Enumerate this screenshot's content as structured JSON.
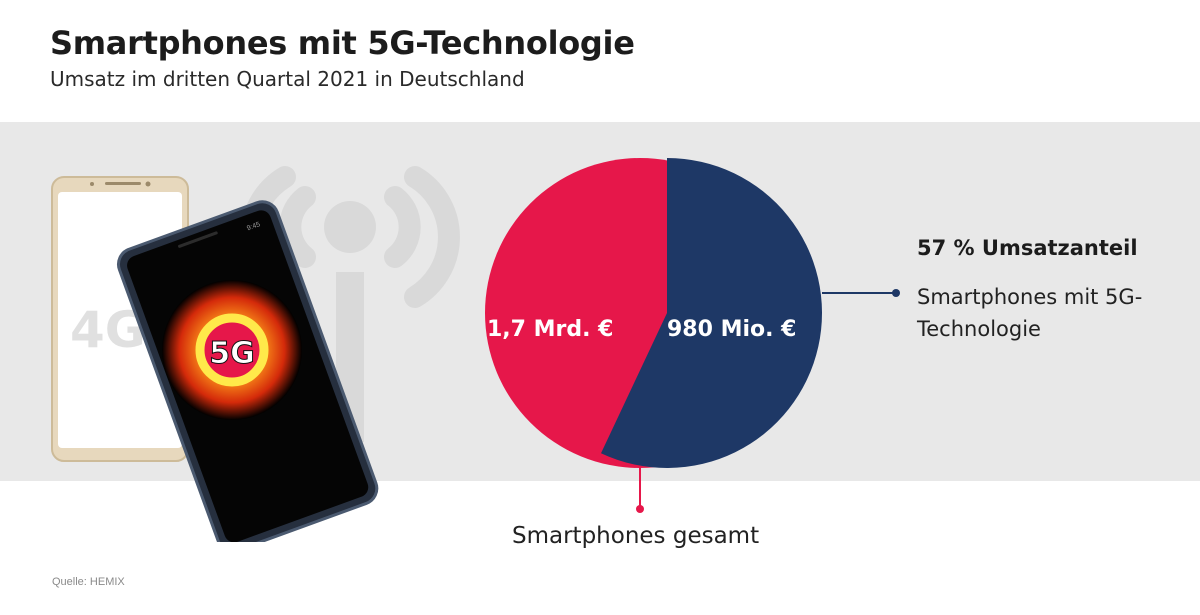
{
  "header": {
    "title": "Smartphones mit 5G-Technologie",
    "subtitle": "Umsatz im dritten Quartal 2021 in Deutschland"
  },
  "illustration": {
    "phone_back_badge": "4G",
    "phone_front_badge": "5G",
    "phone_time": "9:45",
    "icon": "antenna-signal-icon"
  },
  "chart_data": {
    "type": "pie",
    "slices": [
      {
        "label": "1,7 Mrd. €",
        "value": 1.7,
        "unit": "Mrd. €",
        "description": "Smartphones gesamt",
        "color": "#e6174a"
      },
      {
        "label": "980 Mio. €",
        "value": 0.98,
        "unit": "Mrd. €",
        "description": "Smartphones mit 5G-Technologie",
        "color": "#1e3866"
      }
    ],
    "annotation": {
      "value": "57 % Umsatzanteil",
      "text": "Smartphones mit 5G-Technologie",
      "share_percent": 57
    },
    "total_label": "Smartphones gesamt"
  },
  "footer": {
    "source": "Quelle: HEMIX"
  },
  "colors": {
    "red": "#e6174a",
    "navy": "#1e3866",
    "band": "#e8e8e8"
  }
}
